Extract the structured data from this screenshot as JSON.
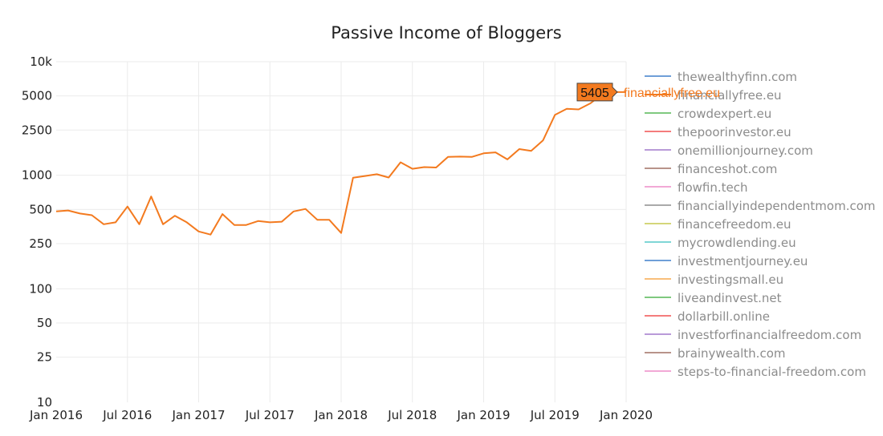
{
  "chart_data": {
    "type": "line",
    "title": "Passive Income of Bloggers",
    "xlabel": "",
    "ylabel": "",
    "y_scale": "log",
    "xlim": [
      "2016-01",
      "2020-01"
    ],
    "ylim": [
      10,
      10000
    ],
    "x_ticks": [
      "Jan 2016",
      "Jul 2016",
      "Jan 2017",
      "Jul 2017",
      "Jan 2018",
      "Jul 2018",
      "Jan 2019",
      "Jul 2019",
      "Jan 2020"
    ],
    "y_ticks": [
      "10",
      "25",
      "50",
      "100",
      "250",
      "500",
      "1000",
      "2500",
      "5000",
      "10k"
    ],
    "grid": true,
    "legend_position": "right",
    "series": [
      {
        "name": "financiallyfree.eu",
        "color": "#f37a1f",
        "x": [
          "2016-01",
          "2016-02",
          "2016-03",
          "2016-04",
          "2016-05",
          "2016-06",
          "2016-07",
          "2016-08",
          "2016-09",
          "2016-10",
          "2016-11",
          "2016-12",
          "2017-01",
          "2017-02",
          "2017-03",
          "2017-04",
          "2017-05",
          "2017-06",
          "2017-07",
          "2017-08",
          "2017-09",
          "2017-10",
          "2017-11",
          "2017-12",
          "2018-01",
          "2018-02",
          "2018-03",
          "2018-04",
          "2018-05",
          "2018-06",
          "2018-07",
          "2018-08",
          "2018-09",
          "2018-10",
          "2018-11",
          "2018-12",
          "2019-01",
          "2019-02",
          "2019-03",
          "2019-04",
          "2019-05",
          "2019-06",
          "2019-07",
          "2019-08",
          "2019-09",
          "2019-10",
          "2019-11",
          "2019-12",
          "2020-01"
        ],
        "values": [
          480,
          490,
          460,
          445,
          370,
          385,
          530,
          370,
          650,
          370,
          440,
          385,
          320,
          300,
          455,
          365,
          365,
          395,
          385,
          390,
          480,
          505,
          405,
          405,
          310,
          950,
          985,
          1020,
          955,
          1300,
          1140,
          1180,
          1170,
          1450,
          1460,
          1450,
          1560,
          1590,
          1380,
          1700,
          1640,
          2030,
          3400,
          3850,
          3800,
          4300,
          5200,
          5405,
          5405
        ]
      },
      {
        "name": "thewealthyfinn.com",
        "color": "#6f9fd8"
      },
      {
        "name": "crowdexpert.eu",
        "color": "#7fc97f"
      },
      {
        "name": "thepoorinvestor.eu",
        "color": "#f47c7c"
      },
      {
        "name": "onemillionjourney.com",
        "color": "#b99ad8"
      },
      {
        "name": "financeshot.com",
        "color": "#b8938a"
      },
      {
        "name": "flowfin.tech",
        "color": "#f2a9d6"
      },
      {
        "name": "financiallyindependentmom.com",
        "color": "#a9a9a9"
      },
      {
        "name": "financefreedom.eu",
        "color": "#d4d679"
      },
      {
        "name": "mycrowdlending.eu",
        "color": "#7fd6d6"
      },
      {
        "name": "investmentjourney.eu",
        "color": "#6f9fd8"
      },
      {
        "name": "investingsmall.eu",
        "color": "#f9bf7a"
      },
      {
        "name": "liveandinvest.net",
        "color": "#7fc97f"
      },
      {
        "name": "dollarbill.online",
        "color": "#f47c7c"
      },
      {
        "name": "investforfinancialfreedom.com",
        "color": "#b99ad8"
      },
      {
        "name": "brainywealth.com",
        "color": "#b8938a"
      },
      {
        "name": "steps-to-financial-freedom.com",
        "color": "#f2a9d6"
      }
    ],
    "legend_items": [
      {
        "name": "thewealthyfinn.com",
        "color": "#6f9fd8"
      },
      {
        "name": "financiallyfree.eu",
        "color": "#f37a1f"
      },
      {
        "name": "crowdexpert.eu",
        "color": "#7fc97f"
      },
      {
        "name": "thepoorinvestor.eu",
        "color": "#f47c7c"
      },
      {
        "name": "onemillionjourney.com",
        "color": "#b99ad8"
      },
      {
        "name": "financeshot.com",
        "color": "#b8938a"
      },
      {
        "name": "flowfin.tech",
        "color": "#f2a9d6"
      },
      {
        "name": "financiallyindependentmom.com",
        "color": "#a9a9a9"
      },
      {
        "name": "financefreedom.eu",
        "color": "#d4d679"
      },
      {
        "name": "mycrowdlending.eu",
        "color": "#7fd6d6"
      },
      {
        "name": "investmentjourney.eu",
        "color": "#6f9fd8"
      },
      {
        "name": "investingsmall.eu",
        "color": "#f9bf7a"
      },
      {
        "name": "liveandinvest.net",
        "color": "#7fc97f"
      },
      {
        "name": "dollarbill.online",
        "color": "#f47c7c"
      },
      {
        "name": "investforfinancialfreedom.com",
        "color": "#b99ad8"
      },
      {
        "name": "brainywealth.com",
        "color": "#b8938a"
      },
      {
        "name": "steps-to-financial-freedom.com",
        "color": "#f2a9d6"
      }
    ],
    "hover": {
      "value": "5405",
      "name": "financiallyfree.eu",
      "x": "2020-01"
    }
  }
}
